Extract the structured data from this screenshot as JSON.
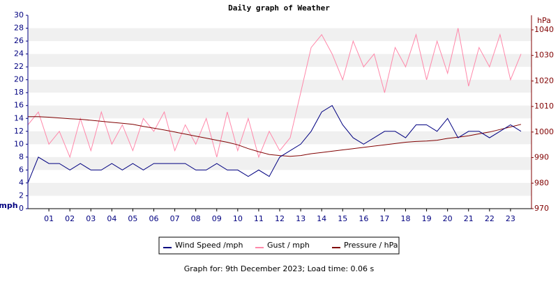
{
  "chart_data": {
    "type": "line",
    "title": "Daily graph of Weather",
    "ylabel": "mph",
    "y2label": "hPa",
    "footer": "Graph for: 9th December 2023; Load time: 0.06 s",
    "x": [
      0,
      0.5,
      1,
      1.5,
      2,
      2.5,
      3,
      3.5,
      4,
      4.5,
      5,
      5.5,
      6,
      6.5,
      7,
      7.5,
      8,
      8.5,
      9,
      9.5,
      10,
      10.5,
      11,
      11.5,
      12,
      12.5,
      13,
      13.5,
      14,
      14.5,
      15,
      15.5,
      16,
      16.5,
      17,
      17.5,
      18,
      18.5,
      19,
      19.5,
      20,
      20.5,
      21,
      21.5,
      22,
      22.5,
      23,
      23.5
    ],
    "xlim": [
      0,
      24
    ],
    "xticks": [
      {
        "value": 1,
        "label": "01"
      },
      {
        "value": 2,
        "label": "02"
      },
      {
        "value": 3,
        "label": "03"
      },
      {
        "value": 4,
        "label": "04"
      },
      {
        "value": 5,
        "label": "05"
      },
      {
        "value": 6,
        "label": "06"
      },
      {
        "value": 7,
        "label": "07"
      },
      {
        "value": 8,
        "label": "08"
      },
      {
        "value": 9,
        "label": "09"
      },
      10,
      11,
      12,
      13,
      14,
      15,
      16,
      17,
      18,
      19,
      20,
      21,
      22,
      23
    ],
    "ylim": [
      0,
      30
    ],
    "yticks": [
      0,
      2,
      4,
      6,
      8,
      10,
      12,
      14,
      16,
      18,
      20,
      22,
      24,
      26,
      28,
      30
    ],
    "y2lim": [
      970,
      1045.7
    ],
    "y2ticks": [
      970,
      980,
      990,
      1000,
      1010,
      1020,
      1030,
      1040
    ],
    "grid": true,
    "series": [
      {
        "name": "Gust / mph",
        "color": "#ff88aa",
        "values": [
          13,
          15,
          10,
          12,
          8,
          14,
          9,
          15,
          10,
          13,
          9,
          14,
          12,
          15,
          9,
          13,
          10,
          14,
          8,
          15,
          9,
          14,
          8,
          12,
          9,
          11,
          18,
          25,
          27,
          24,
          20,
          26,
          22,
          24,
          18,
          25,
          22,
          27,
          20,
          26,
          21,
          28,
          19,
          25,
          22,
          27,
          20,
          24
        ]
      },
      {
        "name": "Pressure / hPa",
        "color": "#800000",
        "axis": "y2",
        "values": [
          1006,
          1006,
          1005.8,
          1005.5,
          1005.2,
          1005,
          1004.6,
          1004.2,
          1003.8,
          1003.4,
          1003,
          1002.2,
          1001.5,
          1000.8,
          1000,
          999.2,
          998.4,
          997.6,
          996.8,
          996,
          995,
          993.5,
          992.3,
          991.2,
          990.8,
          990.5,
          990.8,
          991.5,
          992,
          992.5,
          993,
          993.5,
          994,
          994.5,
          995,
          995.5,
          996,
          996.3,
          996.5,
          996.8,
          997.5,
          998,
          998.5,
          999.3,
          1000,
          1001,
          1002,
          1003
        ]
      },
      {
        "name": "Wind Speed /mph",
        "color": "#000080",
        "values": [
          4,
          8,
          7,
          7,
          6,
          7,
          6,
          6,
          7,
          6,
          7,
          6,
          7,
          7,
          7,
          7,
          6,
          6,
          7,
          6,
          6,
          5,
          6,
          5,
          8,
          9,
          10,
          12,
          15,
          16,
          13,
          11,
          10,
          11,
          12,
          12,
          11,
          13,
          13,
          12,
          14,
          11,
          12,
          12,
          11,
          12,
          13,
          12
        ]
      }
    ],
    "legend_order": [
      2,
      0,
      1
    ]
  }
}
